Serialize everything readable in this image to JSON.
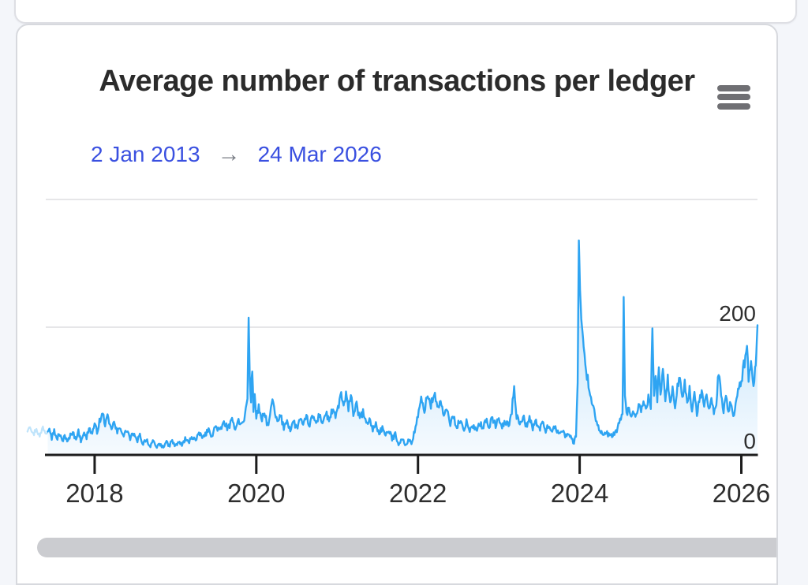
{
  "card": {
    "title": "Average number of transactions per ledger"
  },
  "range_selector": {
    "start": "2 Jan 2013",
    "arrow": "→",
    "end": "24 Mar 2026"
  },
  "colors": {
    "series_line": "#2ea4f2",
    "series_fill": "#46a8f0",
    "link_blue": "#3a50e0",
    "arrow_gray": "#797d85",
    "grid_line": "#e6e6e8",
    "axis_line": "#1c1c1c",
    "tick_text": "#2e2e2e",
    "title_text": "#2b2b2b",
    "scrollbar": "#cbccd0",
    "card_border": "#d7d9de",
    "page_background": "#f4f6fa"
  },
  "chart_data": {
    "type": "area",
    "title": "Average number of transactions per ledger",
    "xlabel": "",
    "ylabel": "",
    "legend": false,
    "grid": true,
    "x_visible_range": [
      2017.415,
      2026.2
    ],
    "x_fade_before": 2017.415,
    "ylim": [
      0,
      409
    ],
    "y_ticks": [
      {
        "value": 0,
        "label": "0"
      },
      {
        "value": 200,
        "label": "200"
      },
      {
        "value": 400,
        "label": ""
      }
    ],
    "x_ticks": [
      {
        "value": 2018,
        "label": "2018"
      },
      {
        "value": 2020,
        "label": "2020"
      },
      {
        "value": 2022,
        "label": "2022"
      },
      {
        "value": 2024,
        "label": "2024"
      },
      {
        "value": 2026,
        "label": "2026"
      }
    ],
    "noise": {
      "seed": 97,
      "amp": 5
    },
    "series": [
      {
        "name": "Average number of transactions per ledger",
        "color": "#2ea4f2",
        "points": [
          [
            2017.16,
            38
          ],
          [
            2017.2,
            48
          ],
          [
            2017.24,
            31
          ],
          [
            2017.28,
            42
          ],
          [
            2017.32,
            28
          ],
          [
            2017.36,
            44
          ],
          [
            2017.4,
            34
          ],
          [
            2017.44,
            46
          ],
          [
            2017.47,
            27
          ],
          [
            2017.5,
            40
          ],
          [
            2017.53,
            23
          ],
          [
            2017.56,
            34
          ],
          [
            2017.6,
            21
          ],
          [
            2017.63,
            32
          ],
          [
            2017.66,
            19
          ],
          [
            2017.7,
            30
          ],
          [
            2017.73,
            38
          ],
          [
            2017.76,
            25
          ],
          [
            2017.8,
            36
          ],
          [
            2017.83,
            23
          ],
          [
            2017.86,
            34
          ],
          [
            2017.9,
            27
          ],
          [
            2017.93,
            44
          ],
          [
            2017.96,
            33
          ],
          [
            2018,
            46
          ],
          [
            2018.03,
            37
          ],
          [
            2018.06,
            52
          ],
          [
            2018.1,
            64
          ],
          [
            2018.13,
            49
          ],
          [
            2018.16,
            58
          ],
          [
            2018.2,
            41
          ],
          [
            2018.24,
            50
          ],
          [
            2018.28,
            35
          ],
          [
            2018.32,
            44
          ],
          [
            2018.36,
            29
          ],
          [
            2018.4,
            40
          ],
          [
            2018.44,
            25
          ],
          [
            2018.48,
            34
          ],
          [
            2018.52,
            21
          ],
          [
            2018.56,
            30
          ],
          [
            2018.6,
            17
          ],
          [
            2018.64,
            26
          ],
          [
            2018.68,
            13
          ],
          [
            2018.72,
            22
          ],
          [
            2018.76,
            10
          ],
          [
            2018.8,
            18
          ],
          [
            2018.84,
            12
          ],
          [
            2018.88,
            20
          ],
          [
            2018.92,
            14
          ],
          [
            2018.96,
            22
          ],
          [
            2019,
            13
          ],
          [
            2019.04,
            21
          ],
          [
            2019.08,
            15
          ],
          [
            2019.12,
            25
          ],
          [
            2019.16,
            19
          ],
          [
            2019.2,
            29
          ],
          [
            2019.25,
            23
          ],
          [
            2019.3,
            33
          ],
          [
            2019.35,
            27
          ],
          [
            2019.4,
            39
          ],
          [
            2019.45,
            31
          ],
          [
            2019.5,
            45
          ],
          [
            2019.55,
            37
          ],
          [
            2019.6,
            51
          ],
          [
            2019.65,
            41
          ],
          [
            2019.7,
            53
          ],
          [
            2019.74,
            43
          ],
          [
            2019.78,
            55
          ],
          [
            2019.82,
            47
          ],
          [
            2019.86,
            61
          ],
          [
            2019.89,
            90
          ],
          [
            2019.905,
            214
          ],
          [
            2019.92,
            116
          ],
          [
            2019.935,
            86
          ],
          [
            2019.95,
            139
          ],
          [
            2019.965,
            70
          ],
          [
            2019.98,
            95
          ],
          [
            2020,
            61
          ],
          [
            2020.03,
            75
          ],
          [
            2020.06,
            53
          ],
          [
            2020.1,
            65
          ],
          [
            2020.14,
            47
          ],
          [
            2020.17,
            59
          ],
          [
            2020.2,
            89
          ],
          [
            2020.23,
            63
          ],
          [
            2020.26,
            51
          ],
          [
            2020.3,
            61
          ],
          [
            2020.34,
            43
          ],
          [
            2020.38,
            55
          ],
          [
            2020.42,
            39
          ],
          [
            2020.46,
            53
          ],
          [
            2020.5,
            41
          ],
          [
            2020.54,
            57
          ],
          [
            2020.58,
            45
          ],
          [
            2020.62,
            59
          ],
          [
            2020.66,
            47
          ],
          [
            2020.7,
            61
          ],
          [
            2020.74,
            49
          ],
          [
            2020.78,
            63
          ],
          [
            2020.82,
            51
          ],
          [
            2020.86,
            65
          ],
          [
            2020.9,
            55
          ],
          [
            2020.94,
            69
          ],
          [
            2020.98,
            59
          ],
          [
            2021.02,
            79
          ],
          [
            2021.05,
            97
          ],
          [
            2021.08,
            73
          ],
          [
            2021.11,
            94
          ],
          [
            2021.14,
            69
          ],
          [
            2021.17,
            99
          ],
          [
            2021.2,
            65
          ],
          [
            2021.24,
            77
          ],
          [
            2021.28,
            57
          ],
          [
            2021.32,
            67
          ],
          [
            2021.36,
            47
          ],
          [
            2021.4,
            57
          ],
          [
            2021.44,
            39
          ],
          [
            2021.48,
            49
          ],
          [
            2021.52,
            33
          ],
          [
            2021.56,
            43
          ],
          [
            2021.6,
            29
          ],
          [
            2021.64,
            39
          ],
          [
            2021.68,
            25
          ],
          [
            2021.72,
            33
          ],
          [
            2021.76,
            17
          ],
          [
            2021.8,
            27
          ],
          [
            2021.84,
            14
          ],
          [
            2021.88,
            24
          ],
          [
            2021.92,
            18
          ],
          [
            2021.96,
            38
          ],
          [
            2022,
            60
          ],
          [
            2022.04,
            87
          ],
          [
            2022.08,
            71
          ],
          [
            2022.12,
            95
          ],
          [
            2022.16,
            77
          ],
          [
            2022.2,
            98
          ],
          [
            2022.24,
            73
          ],
          [
            2022.28,
            85
          ],
          [
            2022.32,
            59
          ],
          [
            2022.36,
            71
          ],
          [
            2022.4,
            49
          ],
          [
            2022.44,
            61
          ],
          [
            2022.48,
            43
          ],
          [
            2022.52,
            55
          ],
          [
            2022.56,
            39
          ],
          [
            2022.6,
            51
          ],
          [
            2022.64,
            35
          ],
          [
            2022.68,
            47
          ],
          [
            2022.72,
            39
          ],
          [
            2022.76,
            51
          ],
          [
            2022.8,
            43
          ],
          [
            2022.84,
            55
          ],
          [
            2022.88,
            45
          ],
          [
            2022.92,
            57
          ],
          [
            2022.96,
            47
          ],
          [
            2023,
            55
          ],
          [
            2023.04,
            43
          ],
          [
            2023.08,
            53
          ],
          [
            2023.12,
            45
          ],
          [
            2023.16,
            68
          ],
          [
            2023.19,
            109
          ],
          [
            2023.22,
            60
          ],
          [
            2023.26,
            50
          ],
          [
            2023.3,
            60
          ],
          [
            2023.34,
            46
          ],
          [
            2023.38,
            56
          ],
          [
            2023.42,
            42
          ],
          [
            2023.46,
            54
          ],
          [
            2023.5,
            40
          ],
          [
            2023.54,
            50
          ],
          [
            2023.58,
            38
          ],
          [
            2023.62,
            48
          ],
          [
            2023.66,
            36
          ],
          [
            2023.7,
            44
          ],
          [
            2023.74,
            32
          ],
          [
            2023.78,
            40
          ],
          [
            2023.82,
            30
          ],
          [
            2023.86,
            36
          ],
          [
            2023.9,
            24
          ],
          [
            2023.93,
            19
          ],
          [
            2023.955,
            30
          ],
          [
            2023.975,
            118
          ],
          [
            2023.99,
            336
          ],
          [
            2024.005,
            258
          ],
          [
            2024.02,
            213
          ],
          [
            2024.035,
            193
          ],
          [
            2024.05,
            168
          ],
          [
            2024.07,
            148
          ],
          [
            2024.09,
            126
          ],
          [
            2024.11,
            110
          ],
          [
            2024.14,
            90
          ],
          [
            2024.17,
            74
          ],
          [
            2024.2,
            58
          ],
          [
            2024.23,
            44
          ],
          [
            2024.26,
            36
          ],
          [
            2024.3,
            30
          ],
          [
            2024.34,
            34
          ],
          [
            2024.38,
            28
          ],
          [
            2024.42,
            32
          ],
          [
            2024.46,
            38
          ],
          [
            2024.5,
            54
          ],
          [
            2024.53,
            62
          ],
          [
            2024.545,
            247
          ],
          [
            2024.56,
            90
          ],
          [
            2024.58,
            64
          ],
          [
            2024.61,
            76
          ],
          [
            2024.64,
            56
          ],
          [
            2024.67,
            70
          ],
          [
            2024.7,
            60
          ],
          [
            2024.73,
            78
          ],
          [
            2024.76,
            64
          ],
          [
            2024.79,
            84
          ],
          [
            2024.82,
            70
          ],
          [
            2024.85,
            92
          ],
          [
            2024.88,
            76
          ],
          [
            2024.9,
            199
          ],
          [
            2024.92,
            94
          ],
          [
            2024.94,
            124
          ],
          [
            2024.96,
            86
          ],
          [
            2024.98,
            134
          ],
          [
            2025,
            98
          ],
          [
            2025.03,
            126
          ],
          [
            2025.06,
            88
          ],
          [
            2025.09,
            118
          ],
          [
            2025.12,
            82
          ],
          [
            2025.15,
            110
          ],
          [
            2025.18,
            76
          ],
          [
            2025.21,
            104
          ],
          [
            2025.24,
            130
          ],
          [
            2025.27,
            90
          ],
          [
            2025.3,
            114
          ],
          [
            2025.33,
            78
          ],
          [
            2025.36,
            102
          ],
          [
            2025.39,
            70
          ],
          [
            2025.42,
            94
          ],
          [
            2025.45,
            64
          ],
          [
            2025.48,
            86
          ],
          [
            2025.51,
            102
          ],
          [
            2025.54,
            74
          ],
          [
            2025.57,
            96
          ],
          [
            2025.6,
            68
          ],
          [
            2025.63,
            90
          ],
          [
            2025.66,
            62
          ],
          [
            2025.69,
            84
          ],
          [
            2025.72,
            132
          ],
          [
            2025.75,
            88
          ],
          [
            2025.78,
            70
          ],
          [
            2025.81,
            93
          ],
          [
            2025.84,
            64
          ],
          [
            2025.87,
            86
          ],
          [
            2025.9,
            58
          ],
          [
            2025.93,
            82
          ],
          [
            2025.96,
            98
          ],
          [
            2026,
            116
          ],
          [
            2026.03,
            140
          ],
          [
            2026.05,
            150
          ],
          [
            2026.07,
            171
          ],
          [
            2026.09,
            116
          ],
          [
            2026.12,
            138
          ],
          [
            2026.15,
            106
          ],
          [
            2026.17,
            130
          ],
          [
            2026.185,
            158
          ],
          [
            2026.2,
            204
          ]
        ]
      }
    ]
  }
}
